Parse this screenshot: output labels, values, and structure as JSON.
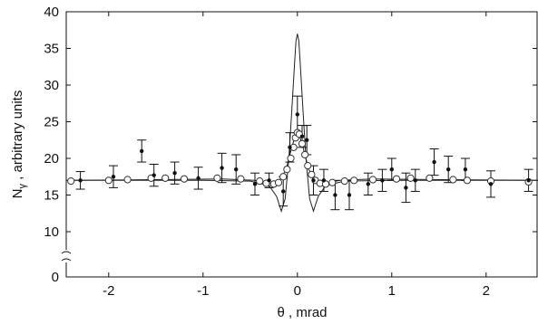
{
  "chart_data": {
    "type": "scatter",
    "xlabel": "θ , mrad",
    "ylabel": "N",
    "ylabel_sub": "γ",
    "ylabel_rest": " , arbitrary units",
    "xlim": [
      -2.45,
      2.55
    ],
    "ylim": [
      0,
      40
    ],
    "axis_break": "between 0 and 10",
    "xticks": [
      -2,
      -1,
      0,
      1,
      2
    ],
    "yticks": [
      0,
      10,
      15,
      20,
      25,
      30,
      35,
      40
    ],
    "grid": false,
    "series": [
      {
        "style": "filled dots with error bars",
        "points": [
          {
            "x": -2.3,
            "y": 17.0,
            "err": 1.2
          },
          {
            "x": -1.95,
            "y": 17.5,
            "err": 1.5
          },
          {
            "x": -1.65,
            "y": 21.0,
            "err": 1.5
          },
          {
            "x": -1.52,
            "y": 17.7,
            "err": 1.5
          },
          {
            "x": -1.3,
            "y": 18.0,
            "err": 1.5
          },
          {
            "x": -1.05,
            "y": 17.3,
            "err": 1.5
          },
          {
            "x": -0.8,
            "y": 18.7,
            "err": 2.0
          },
          {
            "x": -0.65,
            "y": 18.5,
            "err": 2.0
          },
          {
            "x": -0.45,
            "y": 16.5,
            "err": 1.5
          },
          {
            "x": -0.3,
            "y": 17.0,
            "err": 1.0
          },
          {
            "x": -0.15,
            "y": 15.5,
            "err": 2.0
          },
          {
            "x": -0.08,
            "y": 21.5,
            "err": 2.0
          },
          {
            "x": 0.0,
            "y": 26.0,
            "err": 2.5
          },
          {
            "x": 0.05,
            "y": 23.0,
            "err": 1.5
          },
          {
            "x": 0.1,
            "y": 22.5,
            "err": 2.0
          },
          {
            "x": 0.17,
            "y": 17.0,
            "err": 2.0
          },
          {
            "x": 0.28,
            "y": 17.0,
            "err": 1.5
          },
          {
            "x": 0.4,
            "y": 15.0,
            "err": 2.0
          },
          {
            "x": 0.55,
            "y": 15.0,
            "err": 2.0
          },
          {
            "x": 0.75,
            "y": 16.5,
            "err": 1.5
          },
          {
            "x": 0.9,
            "y": 17.0,
            "err": 1.5
          },
          {
            "x": 1.0,
            "y": 18.5,
            "err": 1.5
          },
          {
            "x": 1.15,
            "y": 16.0,
            "err": 2.0
          },
          {
            "x": 1.25,
            "y": 17.0,
            "err": 1.5
          },
          {
            "x": 1.45,
            "y": 19.5,
            "err": 1.8
          },
          {
            "x": 1.6,
            "y": 18.5,
            "err": 1.8
          },
          {
            "x": 1.78,
            "y": 18.5,
            "err": 1.5
          },
          {
            "x": 2.05,
            "y": 16.5,
            "err": 1.8
          },
          {
            "x": 2.45,
            "y": 17.0,
            "err": 1.5
          }
        ]
      },
      {
        "style": "open circles",
        "points": [
          {
            "x": -2.4,
            "y": 16.9
          },
          {
            "x": -2.0,
            "y": 17.0
          },
          {
            "x": -1.8,
            "y": 17.1
          },
          {
            "x": -1.55,
            "y": 17.3
          },
          {
            "x": -1.4,
            "y": 17.3
          },
          {
            "x": -1.2,
            "y": 17.2
          },
          {
            "x": -0.85,
            "y": 17.3
          },
          {
            "x": -0.6,
            "y": 17.2
          },
          {
            "x": -0.4,
            "y": 16.9
          },
          {
            "x": -0.33,
            "y": 16.6
          },
          {
            "x": -0.25,
            "y": 16.5
          },
          {
            "x": -0.2,
            "y": 16.7
          },
          {
            "x": -0.15,
            "y": 17.5
          },
          {
            "x": -0.11,
            "y": 18.5
          },
          {
            "x": -0.07,
            "y": 20.0
          },
          {
            "x": -0.04,
            "y": 21.5
          },
          {
            "x": -0.02,
            "y": 22.8
          },
          {
            "x": 0.0,
            "y": 23.5
          },
          {
            "x": 0.02,
            "y": 23.3
          },
          {
            "x": 0.05,
            "y": 22.0
          },
          {
            "x": 0.08,
            "y": 20.5
          },
          {
            "x": 0.11,
            "y": 19.0
          },
          {
            "x": 0.15,
            "y": 17.8
          },
          {
            "x": 0.19,
            "y": 17.0
          },
          {
            "x": 0.24,
            "y": 16.6
          },
          {
            "x": 0.3,
            "y": 16.5
          },
          {
            "x": 0.37,
            "y": 16.7
          },
          {
            "x": 0.5,
            "y": 16.9
          },
          {
            "x": 0.6,
            "y": 17.0
          },
          {
            "x": 0.8,
            "y": 17.1
          },
          {
            "x": 1.05,
            "y": 17.2
          },
          {
            "x": 1.2,
            "y": 17.3
          },
          {
            "x": 1.4,
            "y": 17.3
          },
          {
            "x": 1.65,
            "y": 17.1
          },
          {
            "x": 1.8,
            "y": 17.0
          },
          {
            "x": 2.05,
            "y": 16.9
          },
          {
            "x": 2.45,
            "y": 16.8
          }
        ]
      },
      {
        "style": "thin solid line",
        "x": [
          -2.45,
          -1.5,
          -0.8,
          -0.45,
          -0.3,
          -0.2,
          -0.12,
          -0.06,
          0.0,
          0.06,
          0.12,
          0.2,
          0.3,
          0.45,
          0.8,
          1.5,
          2.55
        ],
        "y": [
          17.0,
          17.1,
          17.2,
          17.0,
          16.6,
          16.8,
          18.5,
          21.5,
          24.0,
          21.5,
          18.5,
          16.8,
          16.6,
          17.0,
          17.2,
          17.1,
          17.0
        ]
      },
      {
        "style": "thin solid sharp peak line",
        "x": [
          -2.45,
          -1.0,
          -0.5,
          -0.3,
          -0.22,
          -0.17,
          -0.13,
          -0.09,
          -0.06,
          -0.03,
          -0.015,
          0.0,
          0.015,
          0.03,
          0.06,
          0.09,
          0.13,
          0.17,
          0.22,
          0.3,
          0.5,
          1.0,
          2.55
        ],
        "y": [
          17.0,
          17.0,
          16.9,
          16.3,
          14.8,
          12.8,
          14.5,
          20.0,
          26.5,
          33.0,
          36.0,
          37.0,
          36.0,
          33.0,
          26.5,
          20.0,
          14.5,
          12.8,
          14.8,
          16.3,
          16.9,
          17.0,
          17.0
        ]
      }
    ]
  }
}
